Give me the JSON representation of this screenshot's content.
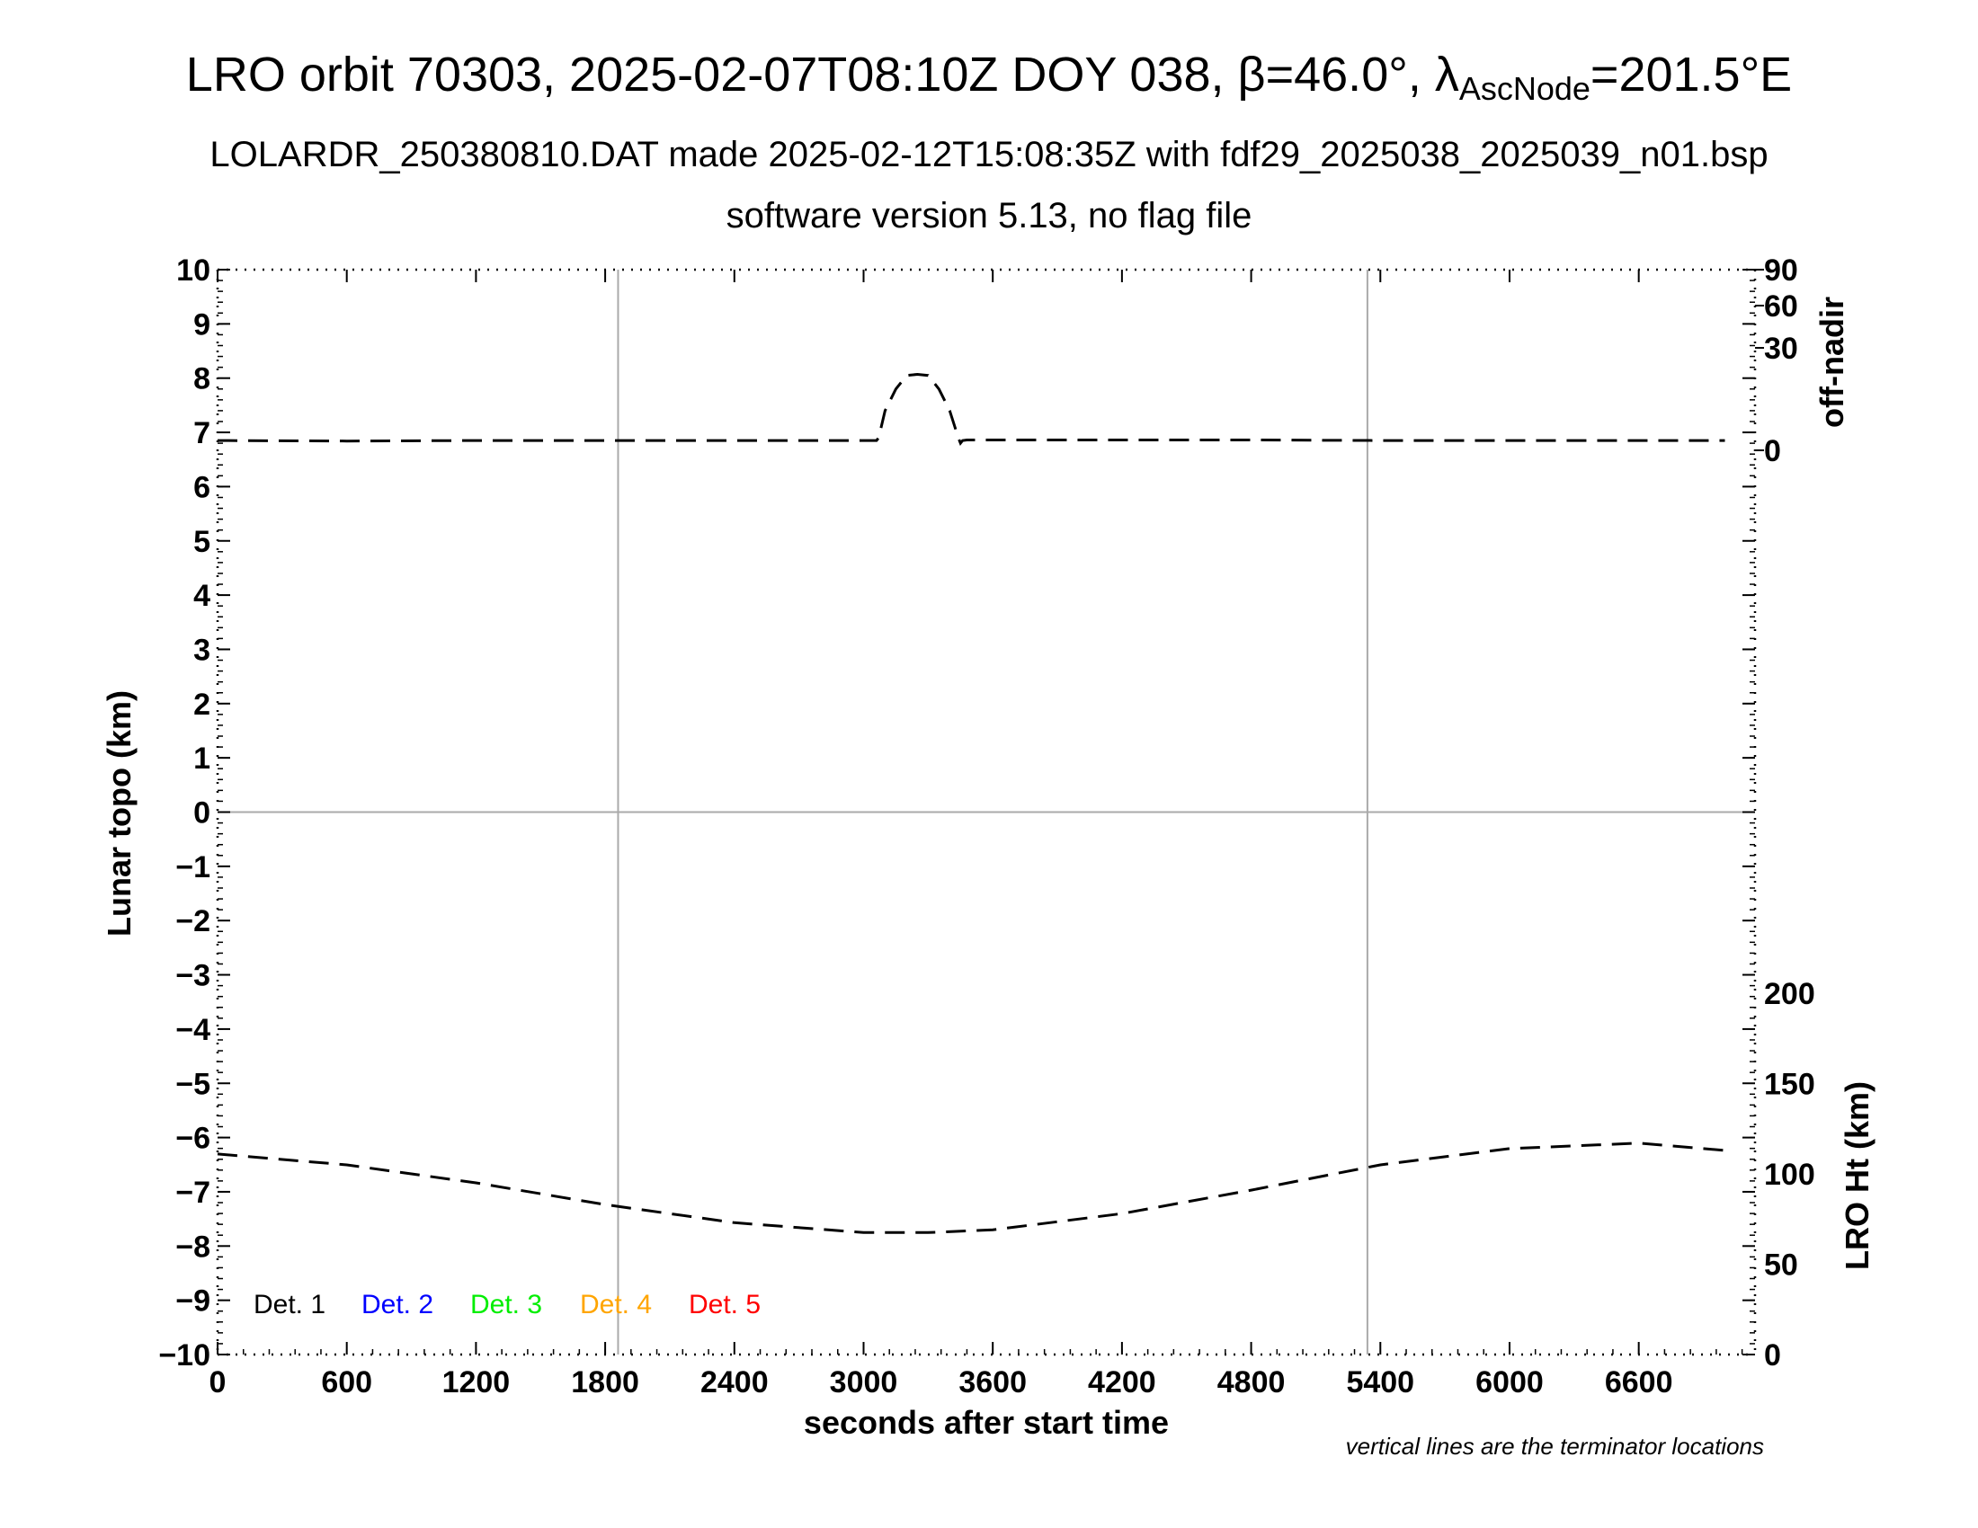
{
  "title": {
    "main_prefix": "LRO orbit 70303, 2025-02-07T08:10Z DOY 038, β=46.0°, λ",
    "main_sub": "AscNode",
    "main_suffix": "=201.5°E",
    "line2": "LOLARDR_250380810.DAT made 2025-02-12T15:08:35Z with fdf29_2025038_2025039_n01.bsp",
    "line3": "software version 5.13, no flag file"
  },
  "chart_data": {
    "type": "line",
    "xlabel": "seconds after start time",
    "ylabel": "Lunar topo (km)",
    "xlim": [
      0,
      7140
    ],
    "ylim": [
      -10,
      10
    ],
    "x_ticks": [
      0,
      600,
      1200,
      1800,
      2400,
      3000,
      3600,
      4200,
      4800,
      5400,
      6000,
      6600
    ],
    "y_ticks": [
      10,
      9,
      8,
      7,
      6,
      5,
      4,
      3,
      2,
      1,
      0,
      -1,
      -2,
      -3,
      -4,
      -5,
      -6,
      -7,
      -8,
      -9,
      -10
    ],
    "grid": "terminator lines + zero line",
    "terminator_lines_x": [
      1860,
      5340
    ],
    "right_axis_top": {
      "label": "off-nadir",
      "ticks": [
        "90",
        "60",
        "30",
        "0"
      ]
    },
    "right_axis_bottom": {
      "label": "LRO Ht (km)",
      "ticks": [
        "200",
        "150",
        "100",
        "50",
        "0"
      ],
      "range": [
        0,
        200
      ]
    },
    "legend_placement": "bottom-left",
    "legend": [
      {
        "name": "Det. 1",
        "color": "#000000"
      },
      {
        "name": "Det. 2",
        "color": "#0000ff"
      },
      {
        "name": "Det. 3",
        "color": "#00ee00"
      },
      {
        "name": "Det. 4",
        "color": "#ffa500"
      },
      {
        "name": "Det. 5",
        "color": "#ff0000"
      }
    ],
    "series": [
      {
        "key": "off_nadir",
        "axis": "off-nadir",
        "style": "dashed",
        "x": [
          0,
          600,
          1200,
          1800,
          2400,
          3000,
          3060,
          3070,
          3100,
          3150,
          3200,
          3250,
          3300,
          3350,
          3400,
          3440,
          3450,
          3460,
          3480,
          4200,
          4800,
          5400,
          6000,
          6600,
          7000
        ],
        "y": [
          6.85,
          6.84,
          6.85,
          6.85,
          6.85,
          6.85,
          6.85,
          6.9,
          7.4,
          7.8,
          8.05,
          8.07,
          8.05,
          7.8,
          7.4,
          6.9,
          6.8,
          6.85,
          6.86,
          6.86,
          6.86,
          6.85,
          6.85,
          6.85,
          6.85
        ]
      },
      {
        "key": "lro_height",
        "axis": "LRO Ht (km)",
        "style": "dashed",
        "x": [
          0,
          600,
          1200,
          1800,
          2400,
          3000,
          3300,
          3600,
          4200,
          4800,
          5400,
          6000,
          6600,
          7000
        ],
        "y": [
          111,
          105,
          95,
          83,
          73,
          67.5,
          67.5,
          69,
          78,
          91,
          105,
          114,
          117,
          113
        ]
      }
    ],
    "note": "vertical lines are the terminator locations"
  }
}
